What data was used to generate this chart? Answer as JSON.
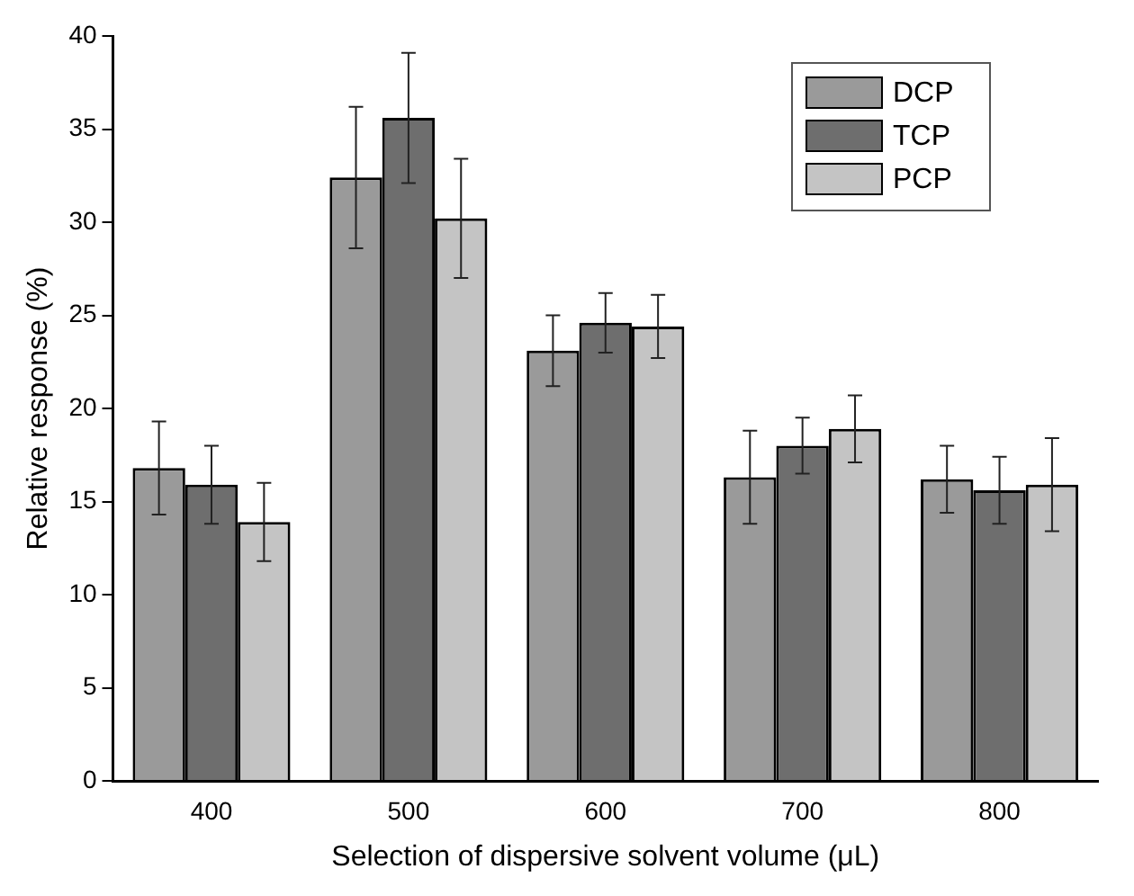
{
  "chart_data": {
    "type": "bar",
    "xlabel": "Selection of dispersive solvent volume (μL)",
    "ylabel": "Relative response (%)",
    "categories": [
      "400",
      "500",
      "600",
      "700",
      "800"
    ],
    "series": [
      {
        "name": "DCP",
        "color": "#9a9a9a",
        "values": [
          16.8,
          32.4,
          23.1,
          16.3,
          16.2
        ],
        "errors": [
          2.5,
          3.8,
          1.9,
          2.5,
          1.8
        ]
      },
      {
        "name": "TCP",
        "color": "#6e6e6e",
        "values": [
          15.9,
          35.6,
          24.6,
          18.0,
          15.6
        ],
        "errors": [
          2.1,
          3.5,
          1.6,
          1.5,
          1.8
        ]
      },
      {
        "name": "PCP",
        "color": "#c4c4c4",
        "values": [
          13.9,
          30.2,
          24.4,
          18.9,
          15.9
        ],
        "errors": [
          2.1,
          3.2,
          1.7,
          1.8,
          2.5
        ]
      }
    ],
    "ylim": [
      0,
      40
    ],
    "yticks": [
      0,
      5,
      10,
      15,
      20,
      25,
      30,
      35,
      40
    ],
    "grid": false,
    "legend": "top right"
  }
}
